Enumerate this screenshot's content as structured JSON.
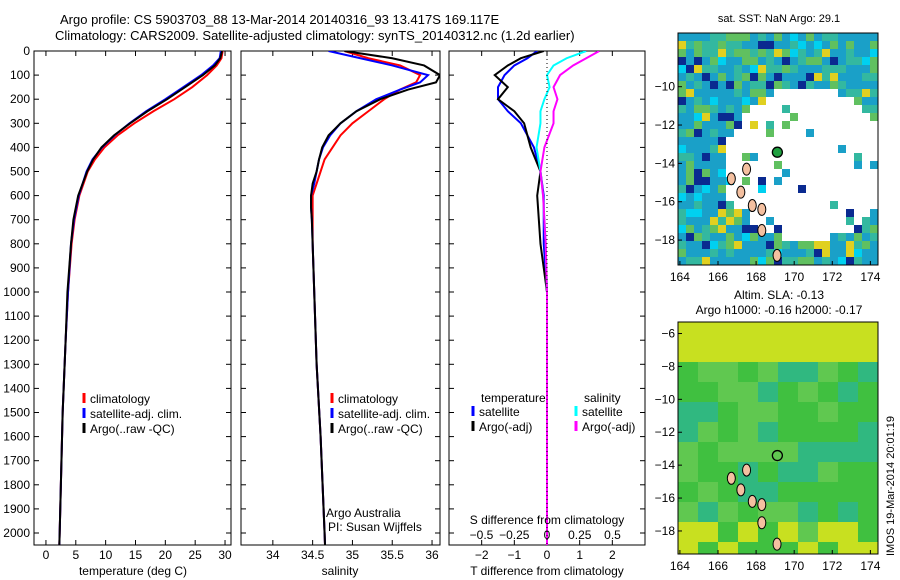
{
  "title": {
    "line1": "Argo profile: CS 5903703_88 13-Mar-2014 20140316_93 13.417S 169.117E",
    "line2": "Climatology: CARS2009. Satellite-adjusted climatology: synTS_20140312.nc (1.2d earlier)"
  },
  "side_label": "IMOS 19-Mar-2014 20:01:19",
  "chart_data": [
    {
      "type": "line",
      "name": "temperature",
      "xlabel": "temperature (deg C)",
      "xlim": [
        -2,
        31
      ],
      "ylim": [
        2090,
        0
      ],
      "xticks": [
        0,
        5,
        10,
        15,
        20,
        25,
        30
      ],
      "yticks": [
        0,
        100,
        200,
        300,
        400,
        500,
        600,
        700,
        800,
        900,
        1000,
        1100,
        1200,
        1300,
        1400,
        1500,
        1600,
        1700,
        1800,
        1900,
        2000
      ],
      "legend": [
        "climatology",
        "satellite-adj. clim.",
        "Argo(..raw -QC)"
      ],
      "legend_colors": [
        "#ff0000",
        "#0000ff",
        "#000000"
      ],
      "depth": [
        0,
        30,
        60,
        100,
        150,
        200,
        250,
        300,
        350,
        400,
        450,
        500,
        600,
        700,
        800,
        1000,
        1200,
        1500,
        1800,
        2000,
        2090
      ],
      "series": [
        {
          "name": "climatology",
          "color": "#ff0000",
          "values": [
            29.6,
            29.4,
            28.6,
            27.0,
            24.5,
            21.5,
            18.0,
            14.8,
            12.0,
            9.8,
            8.2,
            7.0,
            5.6,
            4.8,
            4.3,
            3.7,
            3.3,
            2.8,
            2.5,
            2.3,
            2.2
          ]
        },
        {
          "name": "satellite-adj. clim.",
          "color": "#0000ff",
          "values": [
            29.3,
            29.1,
            28.0,
            26.0,
            23.0,
            20.0,
            16.8,
            14.0,
            11.5,
            9.4,
            7.8,
            6.8,
            5.5,
            4.7,
            4.2,
            3.7,
            3.3,
            2.8,
            2.5,
            2.3,
            2.2
          ]
        },
        {
          "name": "Argo",
          "color": "#000000",
          "values": [
            29.5,
            29.2,
            28.3,
            26.3,
            23.3,
            20.3,
            17.0,
            14.1,
            11.4,
            9.3,
            7.9,
            6.9,
            5.4,
            4.6,
            4.2,
            3.6,
            3.3,
            2.8,
            2.5,
            2.3,
            2.2
          ]
        }
      ]
    },
    {
      "type": "line",
      "name": "salinity",
      "xlabel": "salinity",
      "xlim": [
        33.6,
        36.1
      ],
      "ylim": [
        2090,
        0
      ],
      "xticks": [
        34,
        34.5,
        35,
        35.5,
        36
      ],
      "legend": [
        "climatology",
        "satellite-adj. clim.",
        "Argo(..raw -QC)"
      ],
      "legend_colors": [
        "#ff0000",
        "#0000ff",
        "#000000"
      ],
      "annotation": [
        "Argo Australia",
        "PI: Susan Wijffels"
      ],
      "depth": [
        0,
        30,
        60,
        100,
        130,
        160,
        200,
        250,
        300,
        350,
        400,
        450,
        500,
        550,
        600,
        650,
        700,
        800,
        1000,
        1300,
        1600,
        2000,
        2090
      ],
      "series": [
        {
          "name": "climatology",
          "color": "#ff0000",
          "values": [
            34.9,
            35.2,
            35.6,
            35.85,
            35.8,
            35.6,
            35.4,
            35.2,
            35.0,
            34.85,
            34.75,
            34.65,
            34.6,
            34.55,
            34.5,
            34.5,
            34.5,
            34.5,
            34.52,
            34.55,
            34.6,
            34.65,
            34.66
          ]
        },
        {
          "name": "satellite-adj. clim.",
          "color": "#0000ff",
          "values": [
            34.7,
            35.1,
            35.5,
            35.95,
            35.85,
            35.6,
            35.3,
            35.05,
            34.85,
            34.72,
            34.63,
            34.58,
            34.55,
            34.52,
            34.48,
            34.48,
            34.49,
            34.5,
            34.52,
            34.55,
            34.6,
            34.65,
            34.66
          ]
        },
        {
          "name": "Argo",
          "color": "#000000",
          "values": [
            34.9,
            35.5,
            35.9,
            36.1,
            36.05,
            35.7,
            35.35,
            35.05,
            34.85,
            34.7,
            34.62,
            34.58,
            34.55,
            34.5,
            34.48,
            34.48,
            34.49,
            34.5,
            34.52,
            34.55,
            34.6,
            34.65,
            34.66
          ]
        }
      ]
    },
    {
      "type": "line",
      "name": "difference",
      "xlabel": "T difference from climatology",
      "x2label": "S difference from climatology",
      "xlim": [
        -3,
        3
      ],
      "ylim": [
        2090,
        0
      ],
      "xticks": [
        -2,
        -1,
        0,
        1,
        2
      ],
      "x2ticks": [
        -0.5,
        -0.25,
        0,
        0.25,
        0.5
      ],
      "legend_titles": [
        "temperature",
        "salinity"
      ],
      "legend": [
        "satellite",
        "Argo(-adj)",
        "satellite",
        "Argo(-adj)"
      ],
      "legend_colors": [
        "#0000ff",
        "#000000",
        "#00ffff",
        "#ff00ff"
      ],
      "depth": [
        0,
        30,
        60,
        100,
        150,
        200,
        250,
        300,
        400,
        500,
        600,
        800,
        1000,
        1200,
        1500,
        2000,
        2090
      ],
      "series": [
        {
          "name": "T satellite",
          "unit": "T",
          "color": "#0000ff",
          "values": [
            -0.3,
            -0.6,
            -1.0,
            -1.3,
            -1.5,
            -1.5,
            -1.2,
            -0.8,
            -0.4,
            -0.2,
            -0.1,
            -0.1,
            0,
            0,
            0,
            0,
            0
          ]
        },
        {
          "name": "T Argo",
          "unit": "T",
          "color": "#000000",
          "values": [
            -0.1,
            -0.8,
            -1.2,
            -1.6,
            -1.2,
            -1.5,
            -1.0,
            -0.7,
            -0.5,
            -0.2,
            -0.3,
            -0.2,
            0,
            0,
            0,
            0,
            0
          ]
        },
        {
          "name": "S satellite",
          "unit": "S",
          "color": "#00ffff",
          "values": [
            0.3,
            0.15,
            0.05,
            0.0,
            0.02,
            -0.02,
            -0.05,
            -0.05,
            -0.08,
            -0.05,
            -0.03,
            -0.01,
            0,
            0,
            0,
            0,
            0
          ]
        },
        {
          "name": "S Argo",
          "unit": "S",
          "color": "#ff00ff",
          "values": [
            0.4,
            0.3,
            0.2,
            0.1,
            0.05,
            0.08,
            0.05,
            0.05,
            -0.02,
            -0.05,
            -0.03,
            -0.01,
            0,
            0,
            0,
            0,
            0
          ]
        }
      ]
    },
    {
      "type": "heatmap",
      "name": "sst-map",
      "title": "sat. SST: NaN Argo: 29.1",
      "xticks": [
        164,
        166,
        168,
        170,
        172,
        174
      ],
      "yticks": [
        -10,
        -12,
        -14,
        -16,
        -18
      ],
      "xlim": [
        163.9,
        174.4
      ],
      "ylim": [
        -19.3,
        -7.2
      ],
      "argo_position": [
        169.117,
        -13.417
      ]
    },
    {
      "type": "heatmap",
      "name": "sla-map",
      "title": "Altim. SLA: -0.13",
      "subtitle": "Argo h1000: -0.16 h2000: -0.17",
      "xticks": [
        164,
        166,
        168,
        170,
        172,
        174
      ],
      "yticks": [
        -6,
        -8,
        -10,
        -12,
        -14,
        -16,
        -18
      ],
      "xlim": [
        163.9,
        174.4
      ],
      "ylim": [
        -19.4,
        -5.3
      ],
      "argo_position": [
        169.117,
        -13.417
      ]
    }
  ]
}
